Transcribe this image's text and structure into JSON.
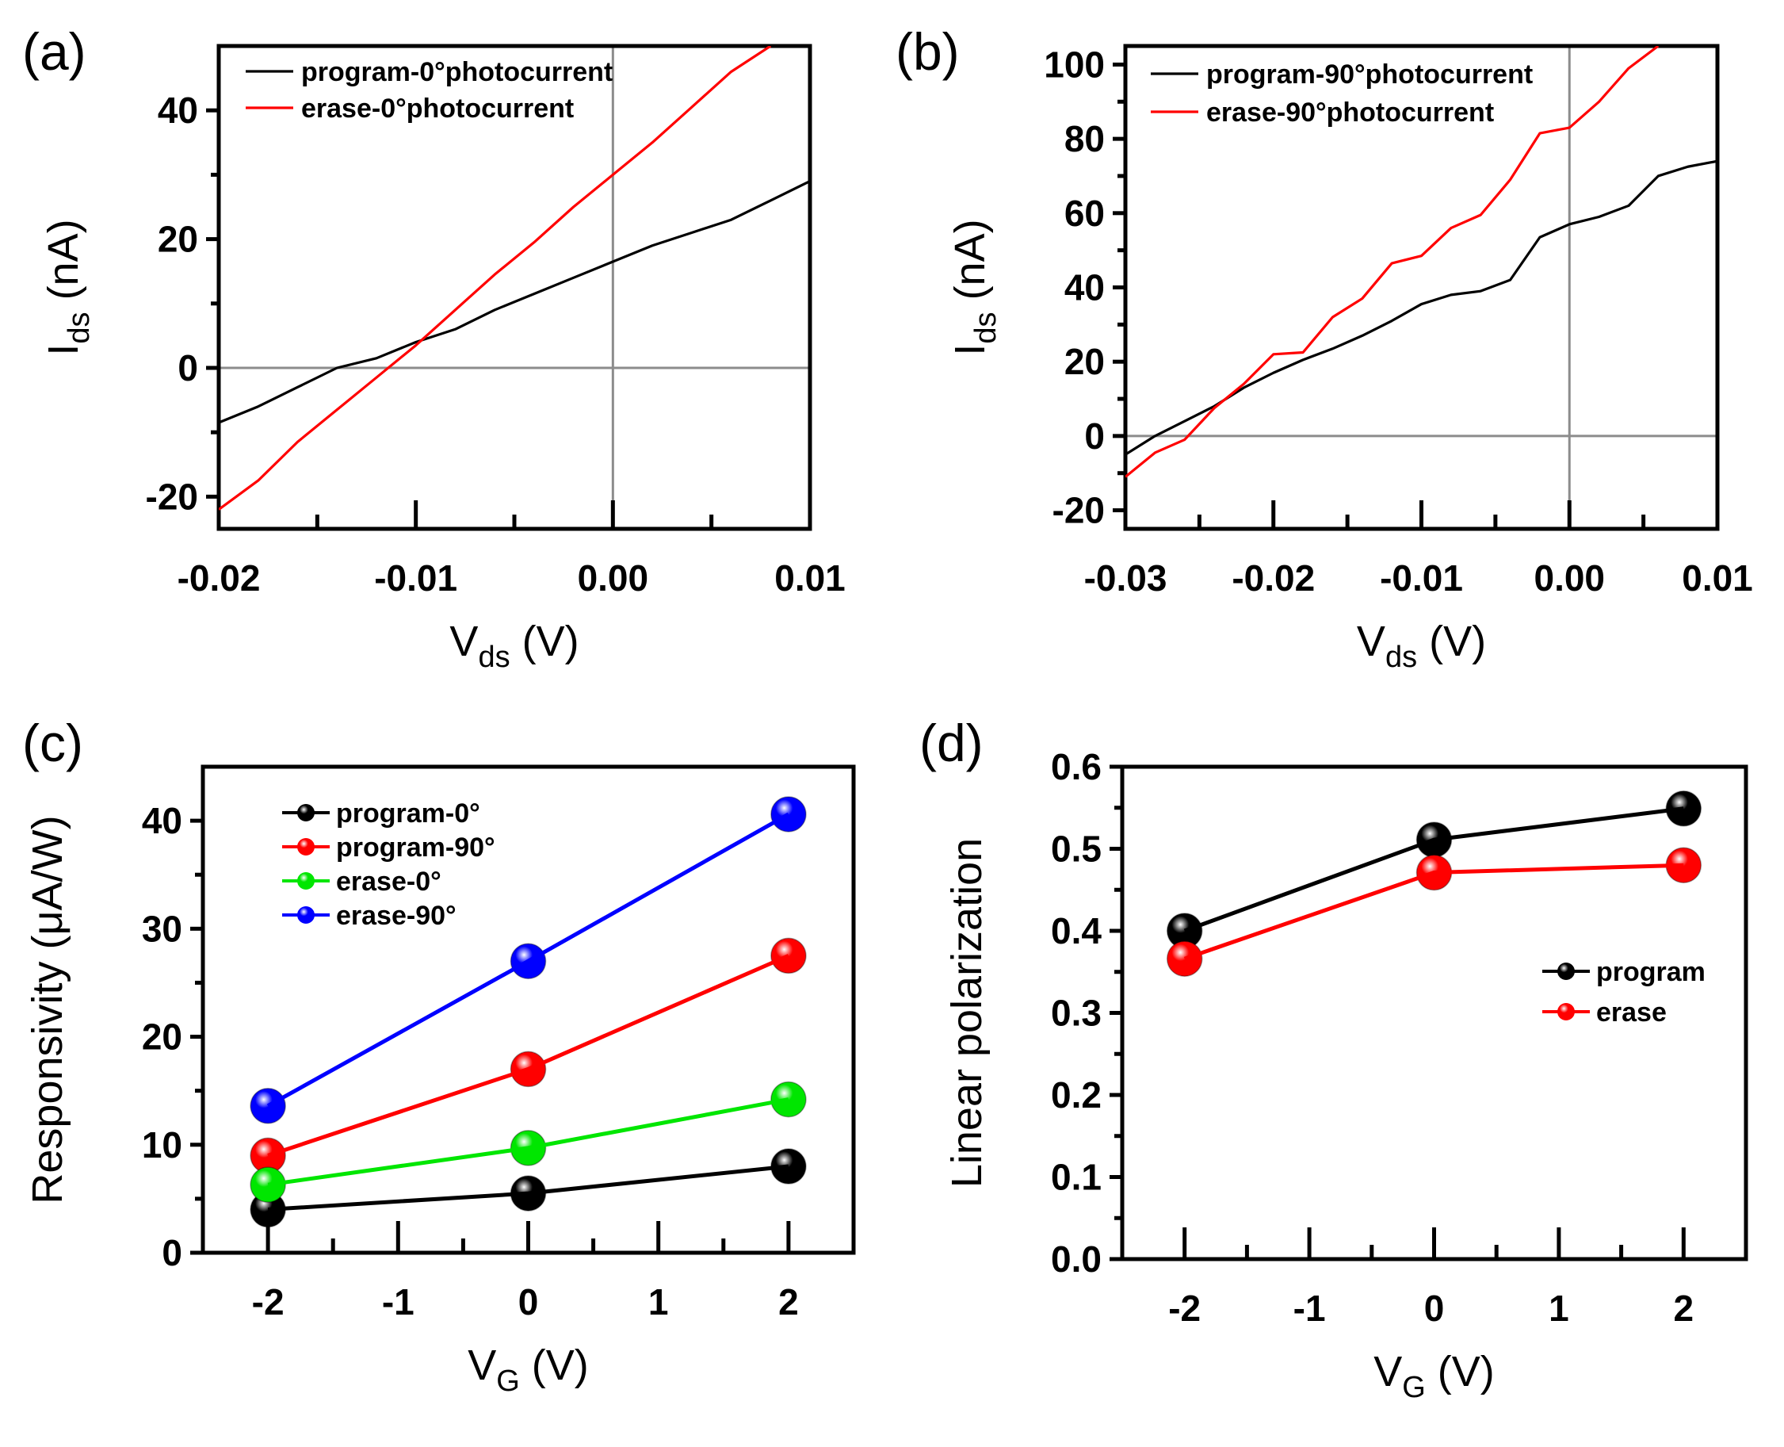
{
  "chart_data": [
    {
      "id": "a",
      "type": "line",
      "panel_label": "(a)",
      "xlabel": "V",
      "xlabel_sub": "ds",
      "xlabel_unit": " (V)",
      "ylabel": "I",
      "ylabel_sub": "ds",
      "ylabel_unit": " (nA)",
      "xlim": [
        -0.02,
        0.01
      ],
      "ylim": [
        -25,
        50
      ],
      "xticks": [
        -0.02,
        -0.01,
        0.0,
        0.01
      ],
      "xtick_labels": [
        "-0.02",
        "-0.01",
        "0.00",
        "0.01"
      ],
      "yticks": [
        -20,
        0,
        20,
        40
      ],
      "ytick_labels": [
        "-20",
        "0",
        "20",
        "40"
      ],
      "legend_position": "top-left",
      "series": [
        {
          "name": "program-0°photocurrent",
          "color": "#000000",
          "x": [
            -0.02,
            -0.018,
            -0.016,
            -0.014,
            -0.012,
            -0.01,
            -0.008,
            -0.006,
            -0.004,
            -0.002,
            0.0,
            0.002,
            0.004,
            0.006,
            0.008,
            0.01
          ],
          "y": [
            -8.5,
            -6,
            -3,
            0,
            1.5,
            4,
            6,
            9,
            11.5,
            14,
            16.5,
            19,
            21,
            23,
            26,
            29
          ]
        },
        {
          "name": "erase-0°photocurrent",
          "color": "#ff0000",
          "x": [
            -0.02,
            -0.018,
            -0.016,
            -0.014,
            -0.012,
            -0.01,
            -0.008,
            -0.006,
            -0.004,
            -0.002,
            0.0,
            0.002,
            0.004,
            0.006,
            0.008
          ],
          "y": [
            -22,
            -17.5,
            -11.5,
            -6.5,
            -1.5,
            3.5,
            9,
            14.5,
            19.5,
            25,
            30,
            35,
            40.5,
            46,
            50
          ]
        }
      ]
    },
    {
      "id": "b",
      "type": "line",
      "panel_label": "(b)",
      "xlabel": "V",
      "xlabel_sub": "ds",
      "xlabel_unit": " (V)",
      "ylabel": "I",
      "ylabel_sub": "ds",
      "ylabel_unit": " (nA)",
      "xlim": [
        -0.03,
        0.01
      ],
      "ylim": [
        -25,
        105
      ],
      "xticks": [
        -0.03,
        -0.02,
        -0.01,
        0.0,
        0.01
      ],
      "xtick_labels": [
        "-0.03",
        "-0.02",
        "-0.01",
        "0.00",
        "0.01"
      ],
      "yticks": [
        -20,
        0,
        20,
        40,
        60,
        80,
        100
      ],
      "ytick_labels": [
        "-20",
        "0",
        "20",
        "40",
        "60",
        "80",
        "100"
      ],
      "legend_position": "top-left",
      "series": [
        {
          "name": "program-90°photocurrent",
          "color": "#000000",
          "x": [
            -0.03,
            -0.028,
            -0.026,
            -0.024,
            -0.022,
            -0.02,
            -0.018,
            -0.016,
            -0.014,
            -0.012,
            -0.01,
            -0.008,
            -0.006,
            -0.004,
            -0.002,
            0.0,
            0.002,
            0.004,
            0.006,
            0.008,
            0.01
          ],
          "y": [
            -5,
            0,
            4,
            8,
            13,
            17,
            20.5,
            23.5,
            27,
            31,
            35.5,
            38,
            39,
            42,
            53.5,
            57,
            59,
            62,
            70,
            72.5,
            74
          ]
        },
        {
          "name": "erase-90°photocurrent",
          "color": "#ff0000",
          "x": [
            -0.03,
            -0.028,
            -0.026,
            -0.024,
            -0.022,
            -0.02,
            -0.018,
            -0.016,
            -0.014,
            -0.012,
            -0.01,
            -0.008,
            -0.006,
            -0.004,
            -0.002,
            0.0,
            0.002,
            0.004,
            0.006
          ],
          "y": [
            -11,
            -4.5,
            -1,
            7.5,
            14,
            22,
            22.5,
            32,
            37,
            46.5,
            48.5,
            56,
            59.5,
            69,
            81.5,
            83,
            90,
            99,
            105
          ]
        }
      ]
    },
    {
      "id": "c",
      "type": "line",
      "panel_label": "(c)",
      "xlabel": "V",
      "xlabel_sub": "G",
      "xlabel_unit": " (V)",
      "ylabel": "Responsivity  (μA/W)",
      "xlim": [
        -2.5,
        2.5
      ],
      "ylim": [
        0,
        45
      ],
      "xticks": [
        -2,
        -1,
        0,
        1,
        2
      ],
      "xtick_labels": [
        "-2",
        "-1",
        "0",
        "1",
        "2"
      ],
      "yticks": [
        0,
        10,
        20,
        30,
        40
      ],
      "ytick_labels": [
        "0",
        "10",
        "20",
        "30",
        "40"
      ],
      "legend_position": "top-left",
      "series": [
        {
          "name": "program-0°",
          "color": "#000000",
          "x": [
            -2,
            0,
            2
          ],
          "y": [
            4,
            5.5,
            8
          ]
        },
        {
          "name": "program-90°",
          "color": "#ff0000",
          "x": [
            -2,
            0,
            2
          ],
          "y": [
            9,
            17,
            27.5
          ]
        },
        {
          "name": "erase-0°",
          "color": "#00e600",
          "x": [
            -2,
            0,
            2
          ],
          "y": [
            6.3,
            9.7,
            14.2
          ]
        },
        {
          "name": "erase-90°",
          "color": "#0000ff",
          "x": [
            -2,
            0,
            2
          ],
          "y": [
            13.6,
            27,
            40.6
          ]
        }
      ]
    },
    {
      "id": "d",
      "type": "line",
      "panel_label": "(d)",
      "xlabel": "V",
      "xlabel_sub": "G",
      "xlabel_unit": " (V)",
      "ylabel": "Linear polarization",
      "xlim": [
        -2.5,
        2.5
      ],
      "ylim": [
        0,
        0.6
      ],
      "xticks": [
        -2,
        -1,
        0,
        1,
        2
      ],
      "xtick_labels": [
        "-2",
        "-1",
        "0",
        "1",
        "2"
      ],
      "yticks": [
        0,
        0.1,
        0.2,
        0.3,
        0.4,
        0.5,
        0.6
      ],
      "ytick_labels": [
        "0.0",
        "0.1",
        "0.2",
        "0.3",
        "0.4",
        "0.5",
        "0.6"
      ],
      "legend_position": "right",
      "series": [
        {
          "name": "program",
          "color": "#000000",
          "x": [
            -2,
            0,
            2
          ],
          "y": [
            0.4,
            0.511,
            0.549
          ]
        },
        {
          "name": "erase",
          "color": "#ff0000",
          "x": [
            -2,
            0,
            2
          ],
          "y": [
            0.366,
            0.471,
            0.48
          ]
        }
      ]
    }
  ]
}
